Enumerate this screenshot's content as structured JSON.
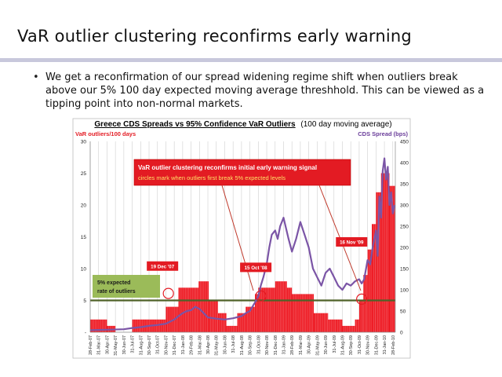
{
  "slide": {
    "title": "VaR outlier clustering reconfirms early warning",
    "bullet": "We get a reconfirmation of our spread widening regime shift when outliers break above our 5% 100 day expected moving average threshhold. This can be viewed as a tipping point into non-normal markets."
  },
  "chart_data": {
    "type": "bar",
    "title": "Greece CDS Spreads vs 95% Confidence VaR Outliers",
    "title_suffix": "(100 day moving average)",
    "ylabel_left": "VaR outliers/100 days",
    "ylabel_right": "CDS Spread (bps)",
    "ylim_left": [
      0,
      30
    ],
    "ylim_right": [
      0,
      450
    ],
    "left_ticks": [
      0,
      5,
      10,
      15,
      20,
      25,
      30
    ],
    "left_tick_labels": [
      "-",
      "5",
      "10",
      "15",
      "20",
      "25",
      "30"
    ],
    "right_ticks": [
      0,
      50,
      100,
      150,
      200,
      250,
      300,
      350,
      400,
      450
    ],
    "x_labels": [
      "28-Feb-07",
      "31-Mar-07",
      "30-Apr-07",
      "31-May-07",
      "30-Jun-07",
      "31-Jul-07",
      "31-Aug-07",
      "30-Sep-07",
      "31-Oct-07",
      "30-Nov-07",
      "31-Dec-07",
      "31-Jan-08",
      "29-Feb-08",
      "31-Mar-08",
      "30-Apr-08",
      "31-May-08",
      "30-Jun-08",
      "31-Jul-08",
      "31-Aug-08",
      "30-Sep-08",
      "31-Oct-08",
      "30-Nov-08",
      "31-Dec-08",
      "31-Jan-09",
      "28-Feb-09",
      "31-Mar-09",
      "30-Apr-09",
      "31-May-09",
      "30-Jun-09",
      "31-Jul-09",
      "31-Aug-09",
      "30-Sep-09",
      "31-Oct-09",
      "30-Nov-09",
      "31-Dec-09",
      "31-Jan-10",
      "28-Feb-10"
    ],
    "x_range": [
      0,
      36.3
    ],
    "grid": "vertical",
    "series": [
      {
        "name": "VaR outliers/100 days",
        "kind": "bar",
        "color": "#ee1c25",
        "steps": [
          [
            0,
            2
          ],
          [
            2,
            1
          ],
          [
            3,
            0
          ],
          [
            5,
            2
          ],
          [
            9,
            4
          ],
          [
            10.5,
            7
          ],
          [
            12.9,
            8
          ],
          [
            14.1,
            5
          ],
          [
            15.2,
            3
          ],
          [
            16.2,
            1
          ],
          [
            17.5,
            3
          ],
          [
            18.5,
            4
          ],
          [
            19.6,
            6
          ],
          [
            20,
            7
          ],
          [
            22,
            8
          ],
          [
            23.4,
            7
          ],
          [
            24,
            6
          ],
          [
            26.6,
            3
          ],
          [
            28.3,
            2
          ],
          [
            29.2,
            2
          ],
          [
            30,
            1
          ],
          [
            31.5,
            2
          ],
          [
            32,
            5
          ],
          [
            32.5,
            9
          ],
          [
            33,
            13
          ],
          [
            33.5,
            17
          ],
          [
            34,
            22
          ],
          [
            34.6,
            25
          ],
          [
            35.6,
            23
          ],
          [
            36.3,
            23
          ]
        ]
      },
      {
        "name": "CDS Spread (bps)",
        "kind": "line",
        "axis": "right",
        "color": "#7b55a6",
        "x": [
          0,
          2,
          4,
          5,
          6,
          7,
          8,
          9,
          9.5,
          10,
          10.5,
          11,
          11.5,
          12,
          12.5,
          13,
          13.5,
          14,
          15,
          16,
          17,
          18,
          18.5,
          19,
          19.3,
          19.6,
          20,
          20.3,
          20.6,
          21,
          21.3,
          21.6,
          22,
          22.3,
          22.6,
          23,
          23.3,
          23.6,
          24,
          24.5,
          25,
          25.5,
          26,
          26.5,
          27,
          27.5,
          28,
          28.5,
          29,
          29.5,
          30,
          30.5,
          31,
          31.5,
          32,
          32.3,
          32.6,
          33,
          33.3,
          33.6,
          34,
          34.2,
          34.4,
          34.6,
          34.8,
          35,
          35.2,
          35.4,
          35.6,
          35.8,
          36,
          36.2
        ],
        "y": [
          5,
          6,
          7,
          10,
          12,
          15,
          17,
          20,
          25,
          30,
          38,
          45,
          50,
          52,
          60,
          55,
          45,
          35,
          32,
          30,
          33,
          38,
          45,
          50,
          60,
          70,
          85,
          110,
          130,
          160,
          200,
          230,
          240,
          220,
          250,
          270,
          245,
          220,
          190,
          220,
          260,
          230,
          200,
          150,
          130,
          110,
          140,
          150,
          130,
          110,
          100,
          115,
          110,
          120,
          125,
          115,
          125,
          170,
          160,
          200,
          240,
          180,
          320,
          270,
          380,
          410,
          360,
          390,
          300,
          330,
          280,
          300
        ]
      }
    ],
    "threshold": {
      "value": 5,
      "label": "5% expected rate of outliers",
      "color": "#4f6228"
    },
    "annotations": [
      {
        "text": "19 Dec '07",
        "x": 8.6,
        "y": 10.4
      },
      {
        "text": "15 Oct '08",
        "x": 19.7,
        "y": 10.2
      },
      {
        "text": "16 Nov '09",
        "x": 31.1,
        "y": 14.2
      }
    ],
    "circles": [
      {
        "x": 9.3,
        "y": 6.1
      },
      {
        "x": 20.3,
        "y": 5.7
      },
      {
        "x": 32.3,
        "y": 5.2
      }
    ],
    "callout": {
      "headline": "VaR outlier clustering reconfirms initial early warning signal",
      "subtext": "circles mark when outliers first break 5% expected levels"
    }
  }
}
